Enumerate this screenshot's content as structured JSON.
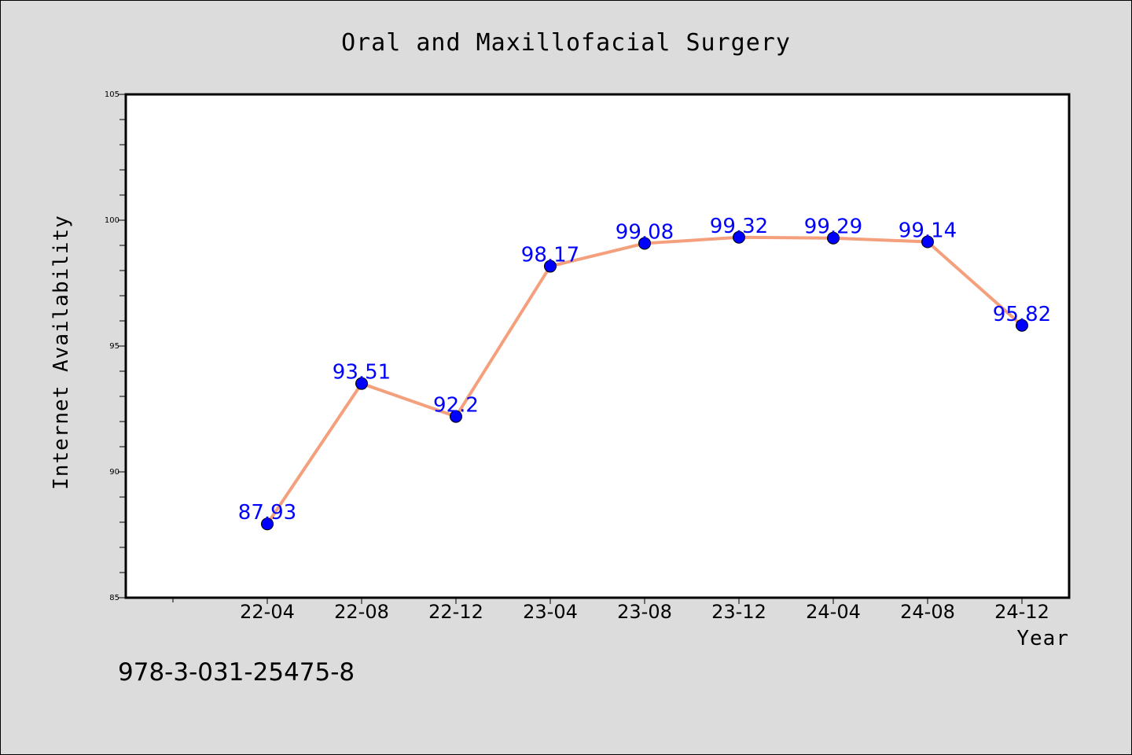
{
  "chart_data": {
    "type": "line",
    "title": "Oral and Maxillofacial Surgery",
    "xlabel": "Year",
    "ylabel": "Internet Availability",
    "categories": [
      "22-04",
      "22-08",
      "22-12",
      "23-04",
      "23-08",
      "23-12",
      "24-04",
      "24-08",
      "24-12"
    ],
    "series": [
      {
        "values": [
          87.93,
          93.51,
          92.2,
          98.17,
          99.08,
          99.32,
          99.29,
          99.14,
          95.82
        ],
        "labels": [
          "87.93",
          "93.51",
          "92.2",
          "98.17",
          "99.08",
          "99.32",
          "99.29",
          "99.14",
          "95.82"
        ],
        "line_color": "#f4a07c",
        "marker_color": "#0000ff"
      }
    ],
    "ylim": [
      85,
      105
    ],
    "yticks": [
      "85",
      "90",
      "95",
      "100",
      "105"
    ],
    "grid": false,
    "legend": "none"
  },
  "footer": {
    "text": "978-3-031-25475-8"
  }
}
